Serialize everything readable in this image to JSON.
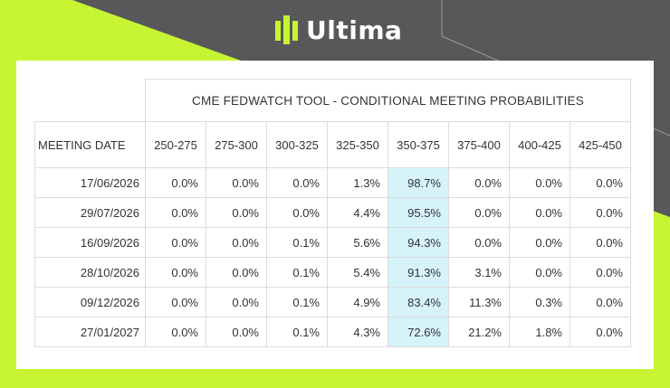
{
  "brand": {
    "name": "Ultima"
  },
  "colors": {
    "lime": "#c6f432",
    "dark": "#58585a",
    "highlight": "#d6f2fb"
  },
  "table": {
    "title": "CME FEDWATCH TOOL - CONDITIONAL MEETING PROBABILITIES",
    "date_header": "MEETING DATE",
    "columns": [
      "250-275",
      "275-300",
      "300-325",
      "325-350",
      "350-375",
      "375-400",
      "400-425",
      "425-450"
    ],
    "highlight_column": "350-375",
    "rows": [
      {
        "date": "17/06/2026",
        "values": [
          "0.0%",
          "0.0%",
          "0.0%",
          "1.3%",
          "98.7%",
          "0.0%",
          "0.0%",
          "0.0%"
        ]
      },
      {
        "date": "29/07/2026",
        "values": [
          "0.0%",
          "0.0%",
          "0.0%",
          "4.4%",
          "95.5%",
          "0.0%",
          "0.0%",
          "0.0%"
        ]
      },
      {
        "date": "16/09/2026",
        "values": [
          "0.0%",
          "0.0%",
          "0.1%",
          "5.6%",
          "94.3%",
          "0.0%",
          "0.0%",
          "0.0%"
        ]
      },
      {
        "date": "28/10/2026",
        "values": [
          "0.0%",
          "0.0%",
          "0.1%",
          "5.4%",
          "91.3%",
          "3.1%",
          "0.0%",
          "0.0%"
        ]
      },
      {
        "date": "09/12/2026",
        "values": [
          "0.0%",
          "0.0%",
          "0.1%",
          "4.9%",
          "83.4%",
          "11.3%",
          "0.3%",
          "0.0%"
        ]
      },
      {
        "date": "27/01/2027",
        "values": [
          "0.0%",
          "0.0%",
          "0.1%",
          "4.3%",
          "72.6%",
          "21.2%",
          "1.8%",
          "0.0%"
        ]
      }
    ]
  }
}
